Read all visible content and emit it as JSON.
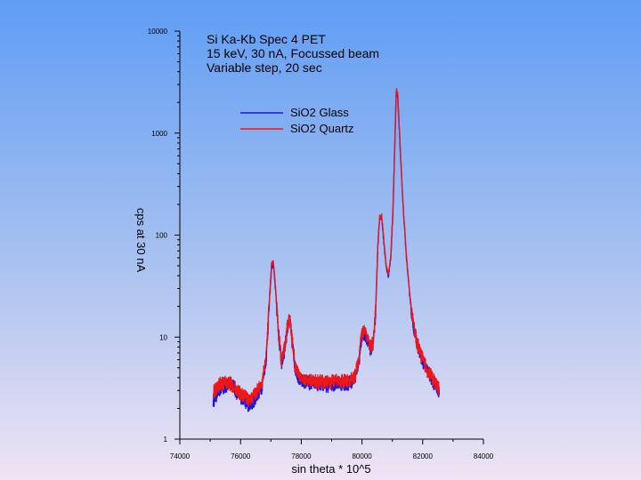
{
  "chart_data": {
    "type": "line",
    "title": [
      "Si Ka-Kb Spec 4 PET",
      "15 keV, 30 nA, Focussed beam",
      "Variable step, 20 sec"
    ],
    "xlabel": "sin theta * 10^5",
    "ylabel": "cps at 30 nA",
    "xlim": [
      74000,
      84000
    ],
    "ylim": [
      1,
      10000
    ],
    "yscale": "log",
    "x_ticks": [
      "74000",
      "76000",
      "78000",
      "80000",
      "82000",
      "84000"
    ],
    "y_ticks": [
      "1",
      "10",
      "100",
      "1000",
      "10000"
    ],
    "grid": false,
    "legend_position": "top-center",
    "series": [
      {
        "name": "SiO2 Glass",
        "color": "#1a1adc",
        "points": [
          [
            75100,
            2.4
          ],
          [
            75300,
            3.1
          ],
          [
            75500,
            3.3
          ],
          [
            75700,
            3.6
          ],
          [
            75900,
            2.8
          ],
          [
            76100,
            2.5
          ],
          [
            76300,
            2.1
          ],
          [
            76500,
            2.6
          ],
          [
            76700,
            3.3
          ],
          [
            76850,
            6.5
          ],
          [
            76950,
            22
          ],
          [
            77020,
            48
          ],
          [
            77080,
            52
          ],
          [
            77150,
            30
          ],
          [
            77250,
            11
          ],
          [
            77350,
            5.5
          ],
          [
            77450,
            7.5
          ],
          [
            77550,
            13
          ],
          [
            77620,
            15
          ],
          [
            77700,
            9
          ],
          [
            77800,
            5
          ],
          [
            77900,
            4.2
          ],
          [
            78000,
            3.7
          ],
          [
            78300,
            3.6
          ],
          [
            78600,
            3.5
          ],
          [
            78900,
            3.4
          ],
          [
            79200,
            3.6
          ],
          [
            79500,
            3.5
          ],
          [
            79750,
            3.9
          ],
          [
            79900,
            5.8
          ],
          [
            80000,
            10.5
          ],
          [
            80100,
            11
          ],
          [
            80200,
            9
          ],
          [
            80300,
            7.5
          ],
          [
            80380,
            9
          ],
          [
            80450,
            18
          ],
          [
            80520,
            75
          ],
          [
            80580,
            145
          ],
          [
            80650,
            150
          ],
          [
            80720,
            85
          ],
          [
            80800,
            48
          ],
          [
            80870,
            40
          ],
          [
            80950,
            60
          ],
          [
            81020,
            170
          ],
          [
            81080,
            750
          ],
          [
            81130,
            2500
          ],
          [
            81180,
            2200
          ],
          [
            81260,
            700
          ],
          [
            81350,
            200
          ],
          [
            81450,
            70
          ],
          [
            81550,
            30
          ],
          [
            81650,
            16
          ],
          [
            81800,
            9
          ],
          [
            81950,
            6.5
          ],
          [
            82100,
            5
          ],
          [
            82250,
            4.2
          ],
          [
            82400,
            3.4
          ],
          [
            82550,
            3
          ]
        ]
      },
      {
        "name": "SiO2 Quartz",
        "color": "#ee1616",
        "points": [
          [
            75100,
            2.9
          ],
          [
            75300,
            3.5
          ],
          [
            75500,
            3.6
          ],
          [
            75700,
            3.5
          ],
          [
            75900,
            3.0
          ],
          [
            76100,
            2.7
          ],
          [
            76300,
            2.4
          ],
          [
            76500,
            2.9
          ],
          [
            76700,
            3.5
          ],
          [
            76850,
            7
          ],
          [
            76950,
            24
          ],
          [
            77020,
            52
          ],
          [
            77080,
            56
          ],
          [
            77150,
            31
          ],
          [
            77250,
            11.5
          ],
          [
            77350,
            5.8
          ],
          [
            77450,
            8
          ],
          [
            77550,
            13.5
          ],
          [
            77620,
            15.5
          ],
          [
            77700,
            9.5
          ],
          [
            77800,
            5.3
          ],
          [
            77900,
            4.4
          ],
          [
            78000,
            3.9
          ],
          [
            78300,
            3.8
          ],
          [
            78600,
            3.7
          ],
          [
            78900,
            3.6
          ],
          [
            79200,
            3.8
          ],
          [
            79500,
            3.7
          ],
          [
            79750,
            4.0
          ],
          [
            79900,
            6.2
          ],
          [
            80000,
            11.5
          ],
          [
            80100,
            12
          ],
          [
            80200,
            9.5
          ],
          [
            80300,
            8
          ],
          [
            80380,
            9.5
          ],
          [
            80450,
            19
          ],
          [
            80520,
            80
          ],
          [
            80580,
            150
          ],
          [
            80650,
            155
          ],
          [
            80720,
            90
          ],
          [
            80800,
            50
          ],
          [
            80870,
            42
          ],
          [
            80950,
            62
          ],
          [
            81020,
            180
          ],
          [
            81080,
            800
          ],
          [
            81130,
            2700
          ],
          [
            81180,
            2350
          ],
          [
            81260,
            720
          ],
          [
            81350,
            205
          ],
          [
            81450,
            72
          ],
          [
            81550,
            31
          ],
          [
            81650,
            16.5
          ],
          [
            81800,
            9.2
          ],
          [
            81950,
            6.8
          ],
          [
            82100,
            5.2
          ],
          [
            82250,
            4.4
          ],
          [
            82400,
            3.6
          ],
          [
            82550,
            3.1
          ]
        ]
      }
    ]
  }
}
